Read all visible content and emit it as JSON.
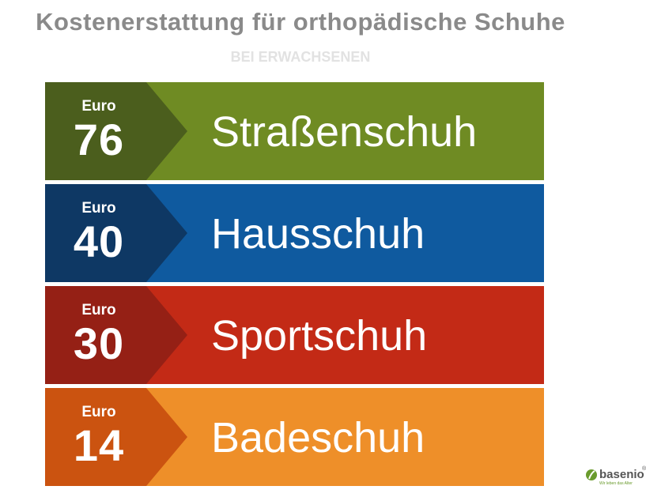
{
  "header": {
    "title": "Kostenerstattung für orthopädische Schuhe",
    "subtitle": "BEI ERWACHSENEN"
  },
  "items": [
    {
      "unit": "Euro",
      "amount": "76",
      "label": "Straßenschuh"
    },
    {
      "unit": "Euro",
      "amount": "40",
      "label": "Hausschuh"
    },
    {
      "unit": "Euro",
      "amount": "30",
      "label": "Sportschuh"
    },
    {
      "unit": "Euro",
      "amount": "14",
      "label": "Badeschuh"
    }
  ],
  "logo": {
    "name": "basenio",
    "mark": "®",
    "tagline": "Wir leben das Alter"
  }
}
